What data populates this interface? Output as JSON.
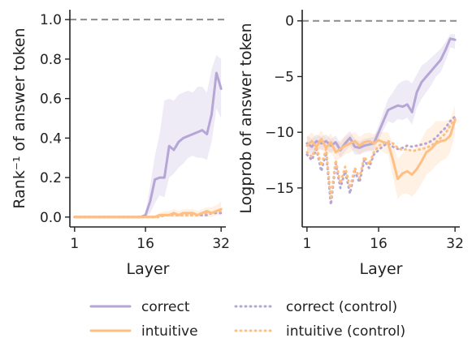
{
  "colors": {
    "correct": "#b6a6d6",
    "intuitive": "#fdbf84",
    "reference": "#8c8c8c",
    "axis": "#222222"
  },
  "legend": {
    "items": [
      {
        "key": "correct",
        "label": "correct",
        "style": "solid"
      },
      {
        "key": "correct_control",
        "label": "correct (control)",
        "style": "dotted"
      },
      {
        "key": "intuitive",
        "label": "intuitive",
        "style": "solid"
      },
      {
        "key": "intuitive_control",
        "label": "intuitive (control)",
        "style": "dotted"
      }
    ]
  },
  "chart_data": [
    {
      "type": "line",
      "panel": "left",
      "xlabel": "Layer",
      "ylabel": "Rank⁻¹ of answer token",
      "xticks": [
        1,
        16,
        32
      ],
      "yticks": [
        "0.0",
        "0.2",
        "0.4",
        "0.6",
        "0.8",
        "1.0"
      ],
      "xlim": [
        0,
        33
      ],
      "ylim": [
        -0.05,
        1.05
      ],
      "reference_line": 1.0,
      "x": [
        1,
        2,
        3,
        4,
        5,
        6,
        7,
        8,
        9,
        10,
        11,
        12,
        13,
        14,
        15,
        16,
        17,
        18,
        19,
        20,
        21,
        22,
        23,
        24,
        25,
        26,
        27,
        28,
        29,
        30,
        31,
        32
      ],
      "series": [
        {
          "name": "correct",
          "style": "solid",
          "color": "correct",
          "values": [
            0,
            0,
            0,
            0,
            0,
            0,
            0,
            0,
            0,
            0,
            0,
            0,
            0,
            0,
            0,
            0.01,
            0.08,
            0.19,
            0.2,
            0.2,
            0.36,
            0.34,
            0.38,
            0.4,
            0.41,
            0.42,
            0.43,
            0.44,
            0.42,
            0.52,
            0.73,
            0.65
          ],
          "lower": [
            0,
            0,
            0,
            0,
            0,
            0,
            0,
            0,
            0,
            0,
            0,
            0,
            0,
            0,
            0,
            0,
            0.02,
            0.07,
            0.11,
            0.1,
            0.2,
            0.22,
            0.25,
            0.27,
            0.3,
            0.31,
            0.3,
            0.3,
            0.29,
            0.38,
            0.55,
            0.5
          ],
          "upper": [
            0,
            0,
            0,
            0,
            0,
            0,
            0,
            0,
            0,
            0,
            0,
            0,
            0,
            0,
            0,
            0.02,
            0.16,
            0.31,
            0.42,
            0.59,
            0.6,
            0.59,
            0.62,
            0.63,
            0.64,
            0.63,
            0.66,
            0.66,
            0.63,
            0.75,
            0.82,
            0.8
          ]
        },
        {
          "name": "intuitive",
          "style": "solid",
          "color": "intuitive",
          "values": [
            0,
            0,
            0,
            0,
            0,
            0,
            0,
            0,
            0,
            0,
            0,
            0,
            0,
            0,
            0,
            0,
            0,
            0,
            0.01,
            0.01,
            0.01,
            0.02,
            0.01,
            0.02,
            0.02,
            0.02,
            0.01,
            0.02,
            0.03,
            0.02,
            0.03,
            0.04
          ],
          "lower": [
            0,
            0,
            0,
            0,
            0,
            0,
            0,
            0,
            0,
            0,
            0,
            0,
            0,
            0,
            0,
            0,
            0,
            0,
            0,
            0,
            0,
            0,
            0,
            0,
            0,
            0,
            0,
            0,
            0,
            0,
            0.01,
            0.01
          ],
          "upper": [
            0,
            0,
            0,
            0,
            0,
            0,
            0,
            0,
            0,
            0,
            0,
            0,
            0,
            0,
            0,
            0,
            0.01,
            0.01,
            0.02,
            0.03,
            0.03,
            0.04,
            0.03,
            0.04,
            0.04,
            0.04,
            0.03,
            0.04,
            0.05,
            0.05,
            0.06,
            0.08
          ]
        },
        {
          "name": "correct (control)",
          "style": "dotted",
          "color": "correct",
          "values": [
            0,
            0,
            0,
            0,
            0,
            0,
            0,
            0,
            0,
            0,
            0,
            0,
            0,
            0,
            0,
            0,
            0,
            0,
            0,
            0.01,
            0.01,
            0.01,
            0.01,
            0.01,
            0.01,
            0.01,
            0.01,
            0.01,
            0.01,
            0.02,
            0.02,
            0.02
          ]
        },
        {
          "name": "intuitive (control)",
          "style": "dotted",
          "color": "intuitive",
          "values": [
            0,
            0,
            0,
            0,
            0,
            0,
            0,
            0,
            0,
            0,
            0,
            0,
            0,
            0,
            0,
            0,
            0,
            0,
            0,
            0.01,
            0.01,
            0.01,
            0.01,
            0.01,
            0.01,
            0.01,
            0.01,
            0.02,
            0.02,
            0.02,
            0.03,
            0.03
          ]
        }
      ]
    },
    {
      "type": "line",
      "panel": "right",
      "xlabel": "Layer",
      "ylabel": "Logprob of answer token",
      "xticks": [
        1,
        16,
        32
      ],
      "yticks": [
        "0",
        "-5",
        "-10",
        "-15"
      ],
      "xlim": [
        0,
        33
      ],
      "ylim": [
        -18.5,
        1
      ],
      "reference_line": 0,
      "x": [
        1,
        2,
        3,
        4,
        5,
        6,
        7,
        8,
        9,
        10,
        11,
        12,
        13,
        14,
        15,
        16,
        17,
        18,
        19,
        20,
        21,
        22,
        23,
        24,
        25,
        26,
        27,
        28,
        29,
        30,
        31,
        32
      ],
      "series": [
        {
          "name": "correct",
          "style": "solid",
          "color": "correct",
          "values": [
            -11,
            -11.3,
            -10.8,
            -11,
            -10.8,
            -11.2,
            -10.9,
            -11.6,
            -11,
            -10.5,
            -11.3,
            -11.4,
            -11.2,
            -11.1,
            -11,
            -10,
            -9,
            -8,
            -7.8,
            -7.6,
            -7.7,
            -7.5,
            -8.2,
            -6.4,
            -5.5,
            -5,
            -4.5,
            -4,
            -3.5,
            -2.6,
            -1.6,
            -1.7
          ],
          "lower": [
            -11.8,
            -12,
            -11.4,
            -11.6,
            -11.5,
            -11.9,
            -11.5,
            -12.3,
            -11.7,
            -11.2,
            -12,
            -12,
            -11.8,
            -11.7,
            -11.6,
            -10.7,
            -9.8,
            -9,
            -9.2,
            -8.8,
            -8.9,
            -8.7,
            -9.3,
            -7.8,
            -7,
            -6.4,
            -5.8,
            -5,
            -4.6,
            -3.6,
            -2.4,
            -2.5
          ],
          "upper": [
            -10.3,
            -10.6,
            -10.2,
            -10.4,
            -10.2,
            -10.6,
            -10.3,
            -11,
            -10.3,
            -9.9,
            -10.6,
            -10.8,
            -10.6,
            -10.5,
            -10.4,
            -9.4,
            -8.2,
            -7,
            -6.4,
            -5.7,
            -5.4,
            -5.3,
            -5.6,
            -4.8,
            -4,
            -3.7,
            -3.3,
            -2.9,
            -2.5,
            -1.9,
            -1.2,
            -1.2
          ]
        },
        {
          "name": "intuitive",
          "style": "solid",
          "color": "intuitive",
          "values": [
            -11.2,
            -10.8,
            -11.3,
            -10.6,
            -11.4,
            -10.9,
            -11.8,
            -11.5,
            -11.2,
            -11,
            -10.8,
            -11.2,
            -10.9,
            -10.8,
            -11,
            -10.7,
            -10.9,
            -11,
            -12.5,
            -14.2,
            -13.7,
            -13.5,
            -13.8,
            -13.3,
            -12.6,
            -11.8,
            -11.5,
            -11,
            -10.8,
            -10.7,
            -10.3,
            -8.9
          ],
          "lower": [
            -12,
            -11.6,
            -12.1,
            -11.4,
            -12.2,
            -11.7,
            -12.6,
            -12.3,
            -12,
            -11.8,
            -11.6,
            -12,
            -11.7,
            -11.6,
            -11.8,
            -11.5,
            -11.8,
            -12,
            -14,
            -16,
            -15.5,
            -15.5,
            -15.8,
            -15.3,
            -14.6,
            -13.8,
            -13.5,
            -13,
            -12.6,
            -12.4,
            -11.8,
            -10.2
          ],
          "upper": [
            -10.4,
            -10,
            -10.5,
            -9.8,
            -10.6,
            -10.1,
            -11,
            -10.7,
            -10.4,
            -10.2,
            -10,
            -10.4,
            -10.1,
            -10,
            -10.2,
            -9.9,
            -10,
            -10,
            -11,
            -12.4,
            -11.9,
            -11.5,
            -11.8,
            -11.3,
            -10.6,
            -9.8,
            -9.5,
            -9,
            -9,
            -9,
            -8.8,
            -7.6
          ]
        },
        {
          "name": "correct (control)",
          "style": "dotted",
          "color": "correct",
          "values": [
            -12,
            -12.5,
            -11.5,
            -13.5,
            -11.8,
            -16.5,
            -12.8,
            -15,
            -13.5,
            -15.5,
            -13.5,
            -14.5,
            -12.5,
            -13.2,
            -12,
            -11.6,
            -11.2,
            -11,
            -11.3,
            -11.5,
            -11.4,
            -11.2,
            -11.3,
            -11.2,
            -11.1,
            -11,
            -10.8,
            -10.5,
            -10,
            -9.6,
            -9,
            -8.6
          ]
        },
        {
          "name": "intuitive (control)",
          "style": "dotted",
          "color": "intuitive",
          "values": [
            -11.8,
            -12.2,
            -11.3,
            -13,
            -11.5,
            -16,
            -12.5,
            -14.6,
            -13.1,
            -15,
            -13.2,
            -14.1,
            -12.2,
            -12.9,
            -11.8,
            -11.2,
            -11,
            -10.8,
            -11,
            -11.4,
            -11.6,
            -11.5,
            -11.7,
            -11.6,
            -11.5,
            -11.4,
            -11.2,
            -10.9,
            -10.5,
            -10.1,
            -9.4,
            -8.8
          ]
        }
      ]
    }
  ]
}
